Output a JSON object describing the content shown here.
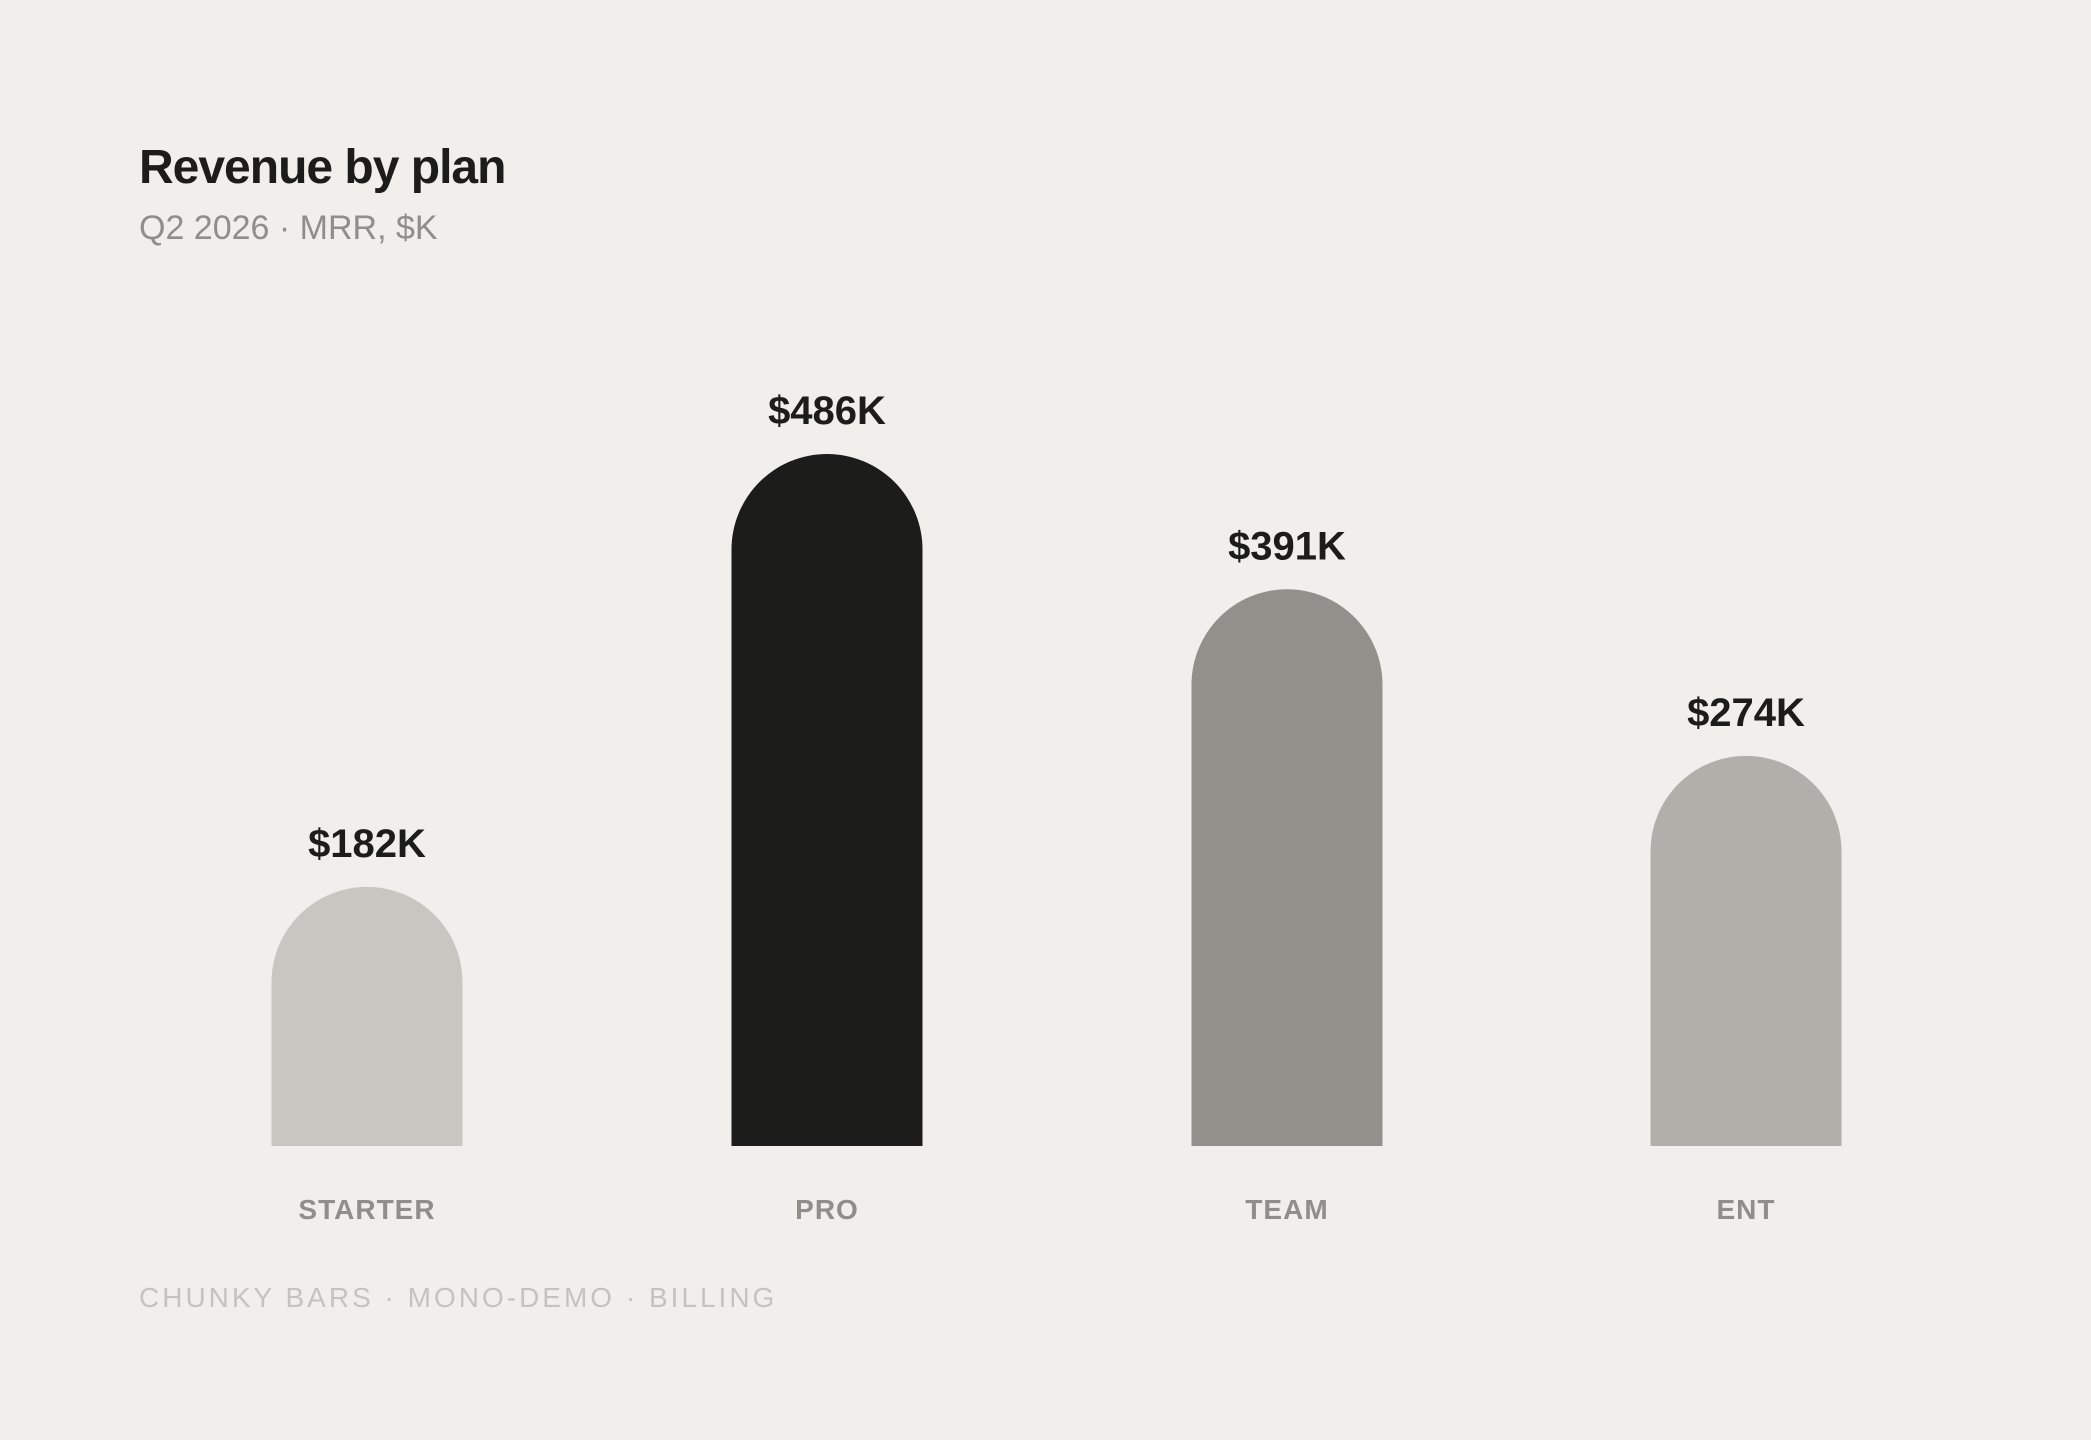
{
  "chart_data": {
    "type": "bar",
    "title": "Revenue by plan",
    "subtitle": "Q2 2026 · MRR, $K",
    "categories": [
      "STARTER",
      "PRO",
      "TEAM",
      "ENT"
    ],
    "values": [
      182,
      486,
      391,
      274
    ],
    "value_labels": [
      "$182K",
      "$486K",
      "$391K",
      "$274K"
    ],
    "bar_colors": [
      "#c7c6c1",
      "#1c1c1a",
      "#91908b",
      "#b0afaa"
    ],
    "ylim": [
      0,
      486
    ],
    "grid": false,
    "legend": "none",
    "xlabel": "",
    "ylabel": ""
  },
  "footer": "CHUNKY BARS · MONO-DEMO · BILLING",
  "colors": {
    "background": "#f0efeb",
    "text": "#1c1c1a",
    "muted": "#8f8e89",
    "faint": "#c4c3be"
  }
}
